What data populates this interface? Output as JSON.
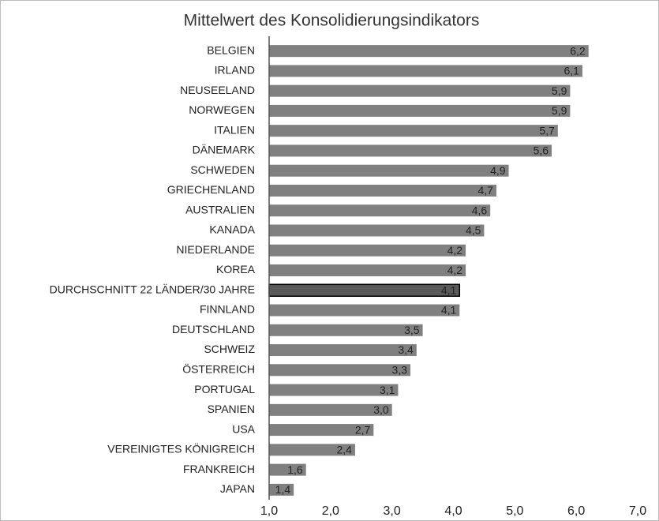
{
  "chart_data": {
    "type": "barh",
    "title": "Mittelwert des Konsolidierungsindikators",
    "categories": [
      "BELGIEN",
      "IRLAND",
      "NEUSEELAND",
      "NORWEGEN",
      "ITALIEN",
      "DÄNEMARK",
      "SCHWEDEN",
      "GRIECHENLAND",
      "AUSTRALIEN",
      "KANADA",
      "NIEDERLANDE",
      "KOREA",
      "DURCHSCHNITT 22 LÄNDER/30 JAHRE",
      "FINNLAND",
      "DEUTSCHLAND",
      "SCHWEIZ",
      "ÖSTERREICH",
      "PORTUGAL",
      "SPANIEN",
      "USA",
      "VEREINIGTES KÖNIGREICH",
      "FRANKREICH",
      "JAPAN"
    ],
    "values": [
      6.2,
      6.1,
      5.9,
      5.9,
      5.7,
      5.6,
      4.9,
      4.7,
      4.6,
      4.5,
      4.2,
      4.2,
      4.1,
      4.1,
      3.5,
      3.4,
      3.3,
      3.1,
      3.0,
      2.7,
      2.4,
      1.6,
      1.4
    ],
    "value_labels": [
      "6,2",
      "6,1",
      "5,9",
      "5,9",
      "5,7",
      "5,6",
      "4,9",
      "4,7",
      "4,6",
      "4,5",
      "4,2",
      "4,2",
      "4,1",
      "4,1",
      "3,5",
      "3,4",
      "3,3",
      "3,1",
      "3,0",
      "2,7",
      "2,4",
      "1,6",
      "1,4"
    ],
    "colors": [
      "#808080",
      "#808080",
      "#808080",
      "#808080",
      "#808080",
      "#808080",
      "#808080",
      "#808080",
      "#808080",
      "#808080",
      "#808080",
      "#808080",
      "#5a5a5a",
      "#808080",
      "#808080",
      "#808080",
      "#808080",
      "#808080",
      "#808080",
      "#808080",
      "#808080",
      "#808080",
      "#808080"
    ],
    "xlim": [
      1,
      7
    ],
    "xticks": [
      {
        "value": 1,
        "label": "1,0"
      },
      {
        "value": 2,
        "label": "2,0"
      },
      {
        "value": 3,
        "label": "3,0"
      },
      {
        "value": 4,
        "label": "4,0"
      },
      {
        "value": 5,
        "label": "5,0"
      },
      {
        "value": 6,
        "label": "6,0"
      },
      {
        "value": 7,
        "label": "7,0"
      }
    ]
  }
}
